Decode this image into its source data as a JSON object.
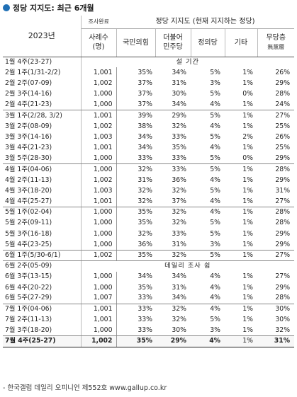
{
  "title": "정당 지지도: 최근 6개월",
  "header": {
    "year": "2023년",
    "sample_label_1": "조사완료",
    "sample_label_2": "사례수",
    "sample_label_3": "(명)",
    "group_label": "정당 지지도 (현재 지지하는 정당)",
    "parties": [
      "국민의힘",
      "더불어\n민주당",
      "정의당",
      "기타",
      "무당층"
    ],
    "noparty_sub": "無黨層"
  },
  "rows": [
    {
      "type": "notice",
      "label": "1월 4주(23-27)",
      "text": "설 기간",
      "end": false
    },
    {
      "label": "2월 1주(1/31-2/2)",
      "n": "1,001",
      "v": [
        "35%",
        "34%",
        "5%",
        "1%",
        "26%"
      ]
    },
    {
      "label": "2월 2주(07-09)",
      "n": "1,002",
      "v": [
        "37%",
        "31%",
        "3%",
        "1%",
        "29%"
      ]
    },
    {
      "label": "2월 3주(14-16)",
      "n": "1,000",
      "v": [
        "37%",
        "30%",
        "5%",
        "0%",
        "28%"
      ]
    },
    {
      "label": "2월 4주(21-23)",
      "n": "1,000",
      "v": [
        "37%",
        "34%",
        "4%",
        "1%",
        "24%"
      ],
      "end": true
    },
    {
      "label": "3월 1주(2/28, 3/2)",
      "n": "1,001",
      "v": [
        "39%",
        "29%",
        "5%",
        "1%",
        "27%"
      ]
    },
    {
      "label": "3월 2주(08-09)",
      "n": "1,002",
      "v": [
        "38%",
        "32%",
        "4%",
        "1%",
        "25%"
      ]
    },
    {
      "label": "3월 3주(14-16)",
      "n": "1,003",
      "v": [
        "34%",
        "33%",
        "5%",
        "2%",
        "26%"
      ]
    },
    {
      "label": "3월 4주(21-23)",
      "n": "1,001",
      "v": [
        "34%",
        "35%",
        "4%",
        "1%",
        "25%"
      ]
    },
    {
      "label": "3월 5주(28-30)",
      "n": "1,000",
      "v": [
        "33%",
        "33%",
        "5%",
        "0%",
        "29%"
      ],
      "end": true
    },
    {
      "label": "4월 1주(04-06)",
      "n": "1,000",
      "v": [
        "32%",
        "33%",
        "5%",
        "1%",
        "28%"
      ]
    },
    {
      "label": "4월 2주(11-13)",
      "n": "1,002",
      "v": [
        "31%",
        "36%",
        "4%",
        "1%",
        "29%"
      ]
    },
    {
      "label": "4월 3주(18-20)",
      "n": "1,003",
      "v": [
        "32%",
        "32%",
        "5%",
        "1%",
        "31%"
      ]
    },
    {
      "label": "4월 4주(25-27)",
      "n": "1,001",
      "v": [
        "32%",
        "37%",
        "4%",
        "1%",
        "27%"
      ],
      "end": true
    },
    {
      "label": "5월 1주(02-04)",
      "n": "1,000",
      "v": [
        "35%",
        "32%",
        "4%",
        "1%",
        "28%"
      ]
    },
    {
      "label": "5월 2주(09-11)",
      "n": "1,000",
      "v": [
        "35%",
        "32%",
        "5%",
        "1%",
        "28%"
      ]
    },
    {
      "label": "5월 3주(16-18)",
      "n": "1,000",
      "v": [
        "32%",
        "33%",
        "5%",
        "1%",
        "29%"
      ]
    },
    {
      "label": "5월 4주(23-25)",
      "n": "1,000",
      "v": [
        "36%",
        "31%",
        "3%",
        "1%",
        "29%"
      ],
      "end": true
    },
    {
      "label": "6월 1주(5/30-6/1)",
      "n": "1,002",
      "v": [
        "35%",
        "32%",
        "5%",
        "1%",
        "27%"
      ],
      "end": true
    },
    {
      "type": "notice",
      "label": "6월 2주(05-09)",
      "text": "데일리 조사 쉼",
      "end": false
    },
    {
      "label": "6월 3주(13-15)",
      "n": "1,000",
      "v": [
        "34%",
        "34%",
        "4%",
        "1%",
        "27%"
      ]
    },
    {
      "label": "6월 4주(20-22)",
      "n": "1,000",
      "v": [
        "35%",
        "31%",
        "4%",
        "1%",
        "29%"
      ]
    },
    {
      "label": "6월 5주(27-29)",
      "n": "1,007",
      "v": [
        "33%",
        "34%",
        "4%",
        "1%",
        "28%"
      ],
      "end": true
    },
    {
      "label": "7월 1주(04-06)",
      "n": "1,001",
      "v": [
        "33%",
        "32%",
        "4%",
        "1%",
        "30%"
      ]
    },
    {
      "label": "7월 2주(11-13)",
      "n": "1,001",
      "v": [
        "33%",
        "32%",
        "5%",
        "1%",
        "30%"
      ]
    },
    {
      "label": "7월 3주(18-20)",
      "n": "1,000",
      "v": [
        "33%",
        "30%",
        "3%",
        "1%",
        "32%"
      ],
      "end": true
    }
  ],
  "final": {
    "label": "7월 4주(25-27)",
    "n": "1,002",
    "v": [
      "35%",
      "29%",
      "4%",
      "1%",
      "31%"
    ]
  },
  "footnote": "- 한국갤럽 데일리 오피니언 제552호 www.gallup.co.kr"
}
